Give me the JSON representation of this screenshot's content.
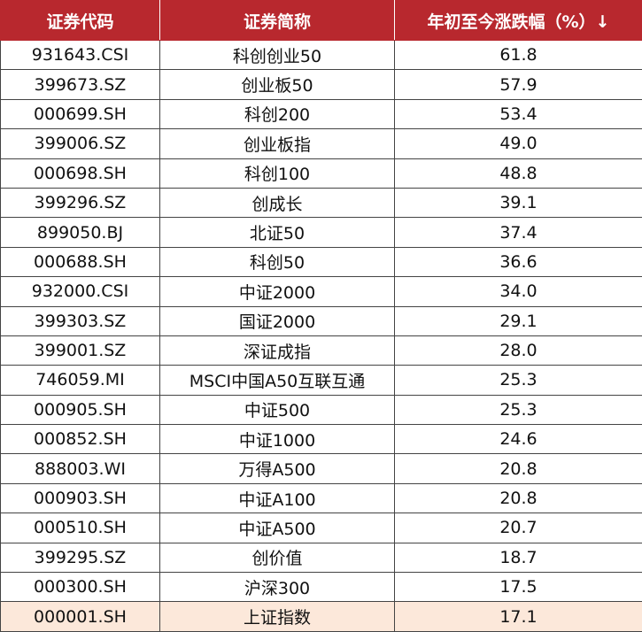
{
  "table": {
    "header": [
      "证券代码",
      "证券简称",
      "年初至今涨跌幅（%）↓"
    ],
    "rows": [
      [
        "931643.CSI",
        "科创创业50",
        "61.8"
      ],
      [
        "399673.SZ",
        "创业板50",
        "57.9"
      ],
      [
        "000699.SH",
        "科创200",
        "53.4"
      ],
      [
        "399006.SZ",
        "创业板指",
        "49.0"
      ],
      [
        "000698.SH",
        "科创100",
        "48.8"
      ],
      [
        "399296.SZ",
        "创成长",
        "39.1"
      ],
      [
        "899050.BJ",
        "北证50",
        "37.4"
      ],
      [
        "000688.SH",
        "科创50",
        "36.6"
      ],
      [
        "932000.CSI",
        "中证2000",
        "34.0"
      ],
      [
        "399303.SZ",
        "国证2000",
        "29.1"
      ],
      [
        "399001.SZ",
        "深证成指",
        "28.0"
      ],
      [
        "746059.MI",
        "MSCI中国A50互联互通",
        "25.3"
      ],
      [
        "000905.SH",
        "中证500",
        "25.3"
      ],
      [
        "000852.SH",
        "中证1000",
        "24.6"
      ],
      [
        "888003.WI",
        "万得A500",
        "20.8"
      ],
      [
        "000903.SH",
        "中证A100",
        "20.8"
      ],
      [
        "000510.SH",
        "中证A500",
        "20.7"
      ],
      [
        "399295.SZ",
        "创价值",
        "18.7"
      ],
      [
        "000300.SH",
        "沪深300",
        "17.5"
      ],
      [
        "000001.SH",
        "上证指数",
        "17.1"
      ]
    ]
  }
}
